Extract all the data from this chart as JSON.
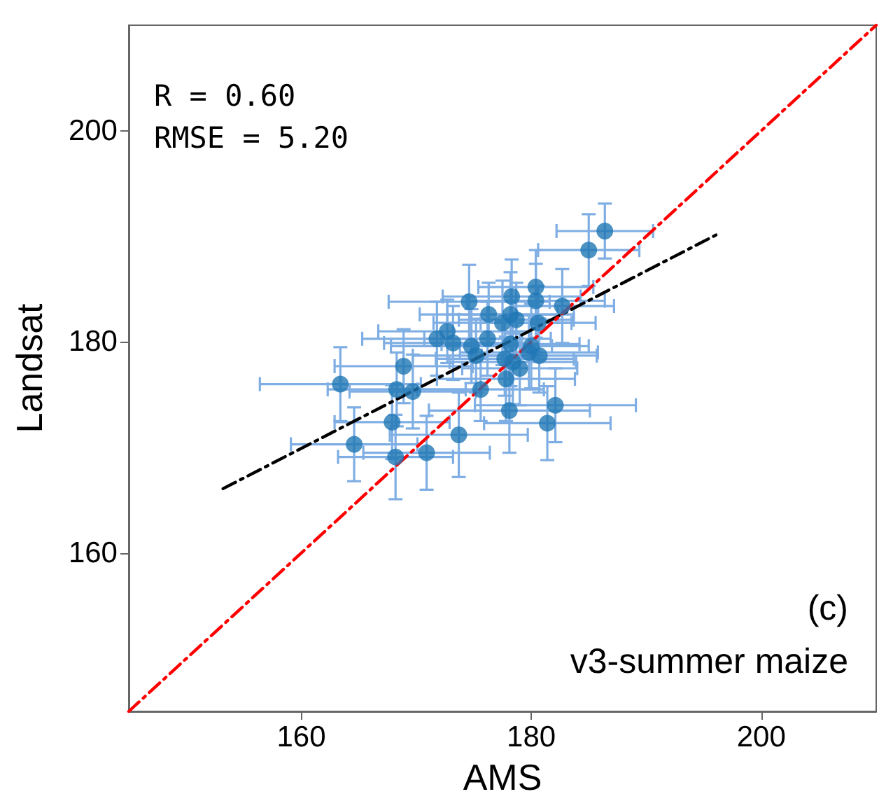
{
  "chart_data": {
    "type": "scatter",
    "xlabel": "AMS",
    "ylabel": "Landsat",
    "annotations": [
      "R = 0.60",
      "RMSE = 5.20",
      "(c)",
      "v3-summer maize"
    ],
    "xlim": [
      145,
      210
    ],
    "ylim": [
      145,
      210
    ],
    "xticks": [
      160,
      180,
      200
    ],
    "yticks": [
      160,
      180,
      200
    ],
    "grid": false,
    "marker": "circle",
    "series": [
      {
        "color": "#1f77b4",
        "x": [
          186.4,
          185.0,
          180.4,
          180.4,
          178.3,
          174.6,
          182.7,
          176.3,
          178.2,
          177.5,
          178.7,
          180.6,
          172.7,
          171.8,
          173.2,
          176.2,
          174.8,
          178.2,
          175.2,
          180.0,
          179.8,
          180.7,
          177.7,
          178.4,
          179.0,
          177.8,
          168.9,
          175.6,
          163.4,
          168.3,
          169.7,
          178.1,
          182.1,
          167.9,
          181.4,
          173.7,
          164.6,
          170.9,
          168.2
        ],
        "values": [
          190.5,
          188.7,
          185.2,
          183.9,
          184.3,
          183.8,
          183.4,
          182.6,
          182.6,
          181.8,
          182.1,
          181.8,
          181.0,
          180.3,
          179.9,
          180.3,
          179.6,
          179.8,
          178.7,
          179.6,
          179.0,
          178.7,
          178.4,
          178.1,
          177.5,
          176.5,
          177.7,
          175.5,
          176.0,
          175.5,
          175.3,
          173.5,
          174.0,
          172.4,
          172.3,
          171.2,
          170.3,
          169.5,
          169.1
        ],
        "xerrors": [
          4.2,
          4.4,
          5,
          6,
          6,
          7,
          4.5,
          6,
          5.5,
          6,
          5,
          5,
          6,
          6.5,
          6,
          5.5,
          7,
          6,
          5.5,
          5,
          6,
          5,
          6,
          5.5,
          5,
          6,
          6,
          5.5,
          7,
          6,
          5.5,
          7,
          7,
          5,
          5.5,
          6,
          5.5,
          5.5,
          5
        ],
        "errors": [
          2.6,
          3.4,
          3.5,
          3.5,
          3.5,
          3.5,
          3.5,
          3,
          4,
          4,
          3.5,
          3.5,
          3,
          3.5,
          3.5,
          3.5,
          3.5,
          4,
          3.5,
          4,
          3.5,
          3.5,
          3.5,
          4,
          3.5,
          4,
          3.5,
          3,
          3.5,
          3.5,
          3.5,
          4,
          3.5,
          3.5,
          3.5,
          4,
          3.5,
          3.5,
          4
        ]
      },
      {
        "type": "line",
        "color": "#000000",
        "line_style": "dashdot",
        "marker": "none",
        "x": [
          153.2,
          196.2
        ],
        "values": [
          166.1,
          190.2
        ]
      },
      {
        "type": "line",
        "color": "#ff0000",
        "line_style": "dashdot",
        "marker": "none",
        "x": [
          145,
          210
        ],
        "values": [
          145,
          210
        ]
      }
    ]
  }
}
